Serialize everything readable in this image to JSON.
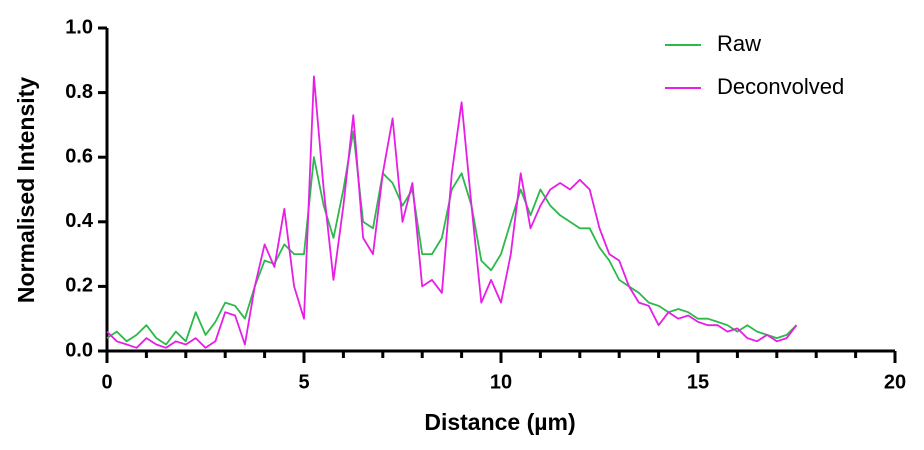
{
  "chart_data": {
    "type": "line",
    "x_label": "Distance (µm)",
    "y_label": "Normalised Intensity",
    "x": [
      0,
      0.25,
      0.5,
      0.75,
      1,
      1.25,
      1.5,
      1.75,
      2,
      2.25,
      2.5,
      2.75,
      3,
      3.25,
      3.5,
      3.75,
      4,
      4.25,
      4.5,
      4.75,
      5,
      5.25,
      5.5,
      5.75,
      6,
      6.25,
      6.5,
      6.75,
      7,
      7.25,
      7.5,
      7.75,
      8,
      8.25,
      8.5,
      8.75,
      9,
      9.25,
      9.5,
      9.75,
      10,
      10.25,
      10.5,
      10.75,
      11,
      11.25,
      11.5,
      11.75,
      12,
      12.25,
      12.5,
      12.75,
      13,
      13.25,
      13.5,
      13.75,
      14,
      14.25,
      14.5,
      14.75,
      15,
      15.25,
      15.5,
      15.75,
      16,
      16.25,
      16.5,
      16.75,
      17,
      17.25,
      17.5
    ],
    "series": [
      {
        "name": "Raw",
        "color": "#2db84a",
        "values": [
          0.04,
          0.06,
          0.03,
          0.05,
          0.08,
          0.04,
          0.02,
          0.06,
          0.03,
          0.12,
          0.05,
          0.09,
          0.15,
          0.14,
          0.1,
          0.2,
          0.28,
          0.27,
          0.33,
          0.3,
          0.3,
          0.6,
          0.45,
          0.35,
          0.5,
          0.68,
          0.4,
          0.38,
          0.55,
          0.52,
          0.45,
          0.5,
          0.3,
          0.3,
          0.35,
          0.5,
          0.55,
          0.45,
          0.28,
          0.25,
          0.3,
          0.4,
          0.5,
          0.42,
          0.5,
          0.45,
          0.42,
          0.4,
          0.38,
          0.38,
          0.32,
          0.28,
          0.22,
          0.2,
          0.18,
          0.15,
          0.14,
          0.12,
          0.13,
          0.12,
          0.1,
          0.1,
          0.09,
          0.08,
          0.06,
          0.08,
          0.06,
          0.05,
          0.04,
          0.05,
          0.08
        ]
      },
      {
        "name": "Deconvolved",
        "color": "#e61ee6",
        "values": [
          0.06,
          0.03,
          0.02,
          0.01,
          0.04,
          0.02,
          0.01,
          0.03,
          0.02,
          0.04,
          0.01,
          0.03,
          0.12,
          0.11,
          0.02,
          0.2,
          0.33,
          0.26,
          0.44,
          0.2,
          0.1,
          0.85,
          0.5,
          0.22,
          0.45,
          0.73,
          0.35,
          0.3,
          0.55,
          0.72,
          0.4,
          0.52,
          0.2,
          0.22,
          0.18,
          0.55,
          0.77,
          0.45,
          0.15,
          0.22,
          0.15,
          0.3,
          0.55,
          0.38,
          0.45,
          0.5,
          0.52,
          0.5,
          0.53,
          0.5,
          0.38,
          0.3,
          0.28,
          0.2,
          0.15,
          0.14,
          0.08,
          0.12,
          0.1,
          0.11,
          0.09,
          0.08,
          0.08,
          0.06,
          0.07,
          0.04,
          0.03,
          0.05,
          0.03,
          0.04,
          0.08
        ]
      }
    ],
    "xlim": [
      0,
      20
    ],
    "xticks": [
      0,
      5,
      10,
      15,
      20
    ],
    "xminor_ticks": [
      1,
      2,
      3,
      4,
      6,
      7,
      8,
      9,
      11,
      12,
      13,
      14,
      16,
      17,
      18,
      19
    ],
    "ylim": [
      0,
      1
    ],
    "yticks": [
      {
        "value": 0,
        "label": "0.0"
      },
      0.2,
      0.4,
      0.6,
      0.8,
      {
        "value": 1,
        "label": "1.0"
      }
    ],
    "grid": false,
    "legend": "top-right"
  }
}
